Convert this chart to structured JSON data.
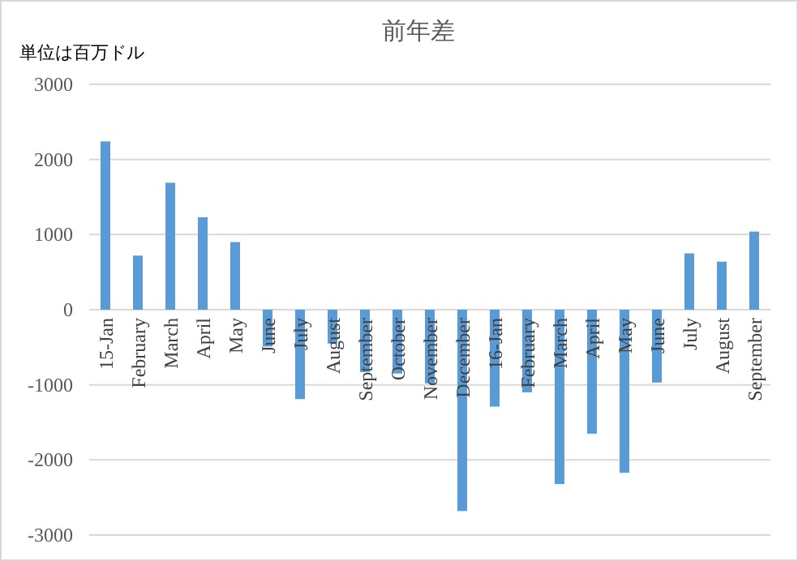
{
  "chart_data": {
    "type": "bar",
    "title": "前年差",
    "annotations": [
      "単位は百万ドル"
    ],
    "categories": [
      "15-Jan",
      "February",
      "March",
      "April",
      "May",
      "June",
      "July",
      "August",
      "September",
      "October",
      "November",
      "December",
      "16-Jan",
      "February",
      "March",
      "April",
      "May",
      "June",
      "July",
      "August",
      "September"
    ],
    "values": [
      2240,
      720,
      1690,
      1230,
      900,
      -490,
      -1190,
      -450,
      -830,
      -850,
      -980,
      -2680,
      -1290,
      -1100,
      -2320,
      -1650,
      -2170,
      -970,
      750,
      640,
      1040
    ],
    "color": "#5b9bd5",
    "ylim": [
      -3000,
      3000
    ],
    "yticks": [
      -3000,
      -2000,
      -1000,
      0,
      1000,
      2000,
      3000
    ],
    "grid": "y"
  }
}
